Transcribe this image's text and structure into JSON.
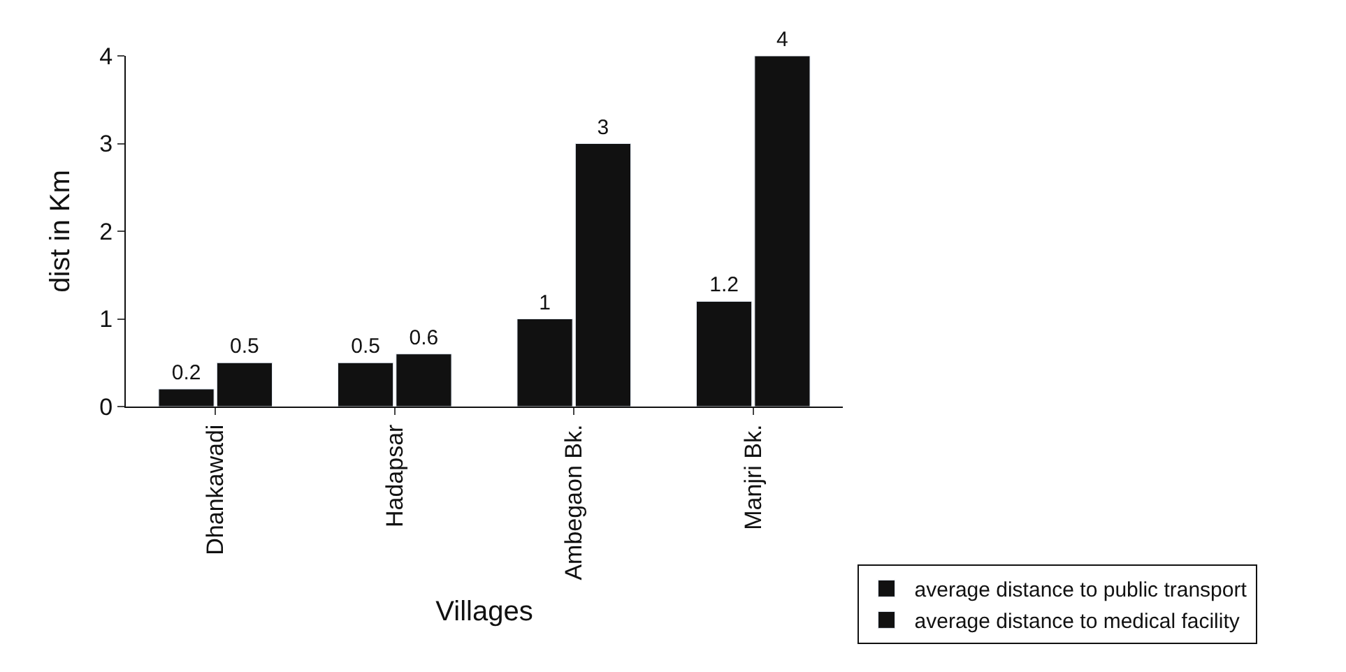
{
  "chart_data": {
    "type": "bar",
    "xlabel": "Villages",
    "ylabel": "dist in Km",
    "categories": [
      "Dhankawadi",
      "Hadapsar",
      "Ambegaon Bk.",
      "Manjri Bk."
    ],
    "series": [
      {
        "name": "average distance to public transport",
        "color": "#111111",
        "values": [
          0.2,
          0.5,
          1,
          1.2
        ]
      },
      {
        "name": "average distance to medical facility",
        "color": "#111111",
        "values": [
          0.5,
          0.6,
          3,
          4
        ]
      }
    ],
    "ylim": [
      0,
      4
    ],
    "yticks": [
      0,
      1,
      2,
      3,
      4
    ],
    "data_labels": true,
    "legend": "bottom right"
  }
}
